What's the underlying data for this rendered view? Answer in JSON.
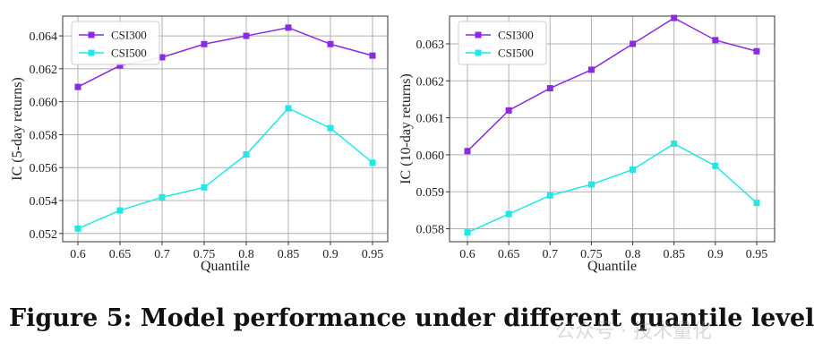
{
  "chart_data": [
    {
      "type": "line",
      "title": "",
      "xlabel": "Quantile",
      "ylabel": "IC  (5-day returns)",
      "categories": [
        "0.6",
        "0.65",
        "0.7",
        "0.75",
        "0.8",
        "0.85",
        "0.9",
        "0.95"
      ],
      "ylim": [
        0.0515,
        0.0652
      ],
      "yticks": [
        "0.052",
        "0.054",
        "0.056",
        "0.058",
        "0.060",
        "0.062",
        "0.064"
      ],
      "ytick_values": [
        0.052,
        0.054,
        0.056,
        0.058,
        0.06,
        0.062,
        0.064
      ],
      "grid": true,
      "legend_position": "top-left",
      "series": [
        {
          "name": "CSI300",
          "color": "#8a2be2",
          "marker": "square",
          "values": [
            0.0609,
            0.0622,
            0.0627,
            0.0635,
            0.064,
            0.0645,
            0.0635,
            0.0628
          ]
        },
        {
          "name": "CSI500",
          "color": "#1ee8e8",
          "marker": "square",
          "values": [
            0.0523,
            0.0534,
            0.0542,
            0.0548,
            0.0568,
            0.0596,
            0.0584,
            0.0563
          ]
        }
      ]
    },
    {
      "type": "line",
      "title": "",
      "xlabel": "Quantile",
      "ylabel": "IC  (10-day returns)",
      "categories": [
        "0.6",
        "0.65",
        "0.7",
        "0.75",
        "0.8",
        "0.85",
        "0.9",
        "0.95"
      ],
      "ylim": [
        0.05765,
        0.06375
      ],
      "yticks": [
        "0.058",
        "0.059",
        "0.060",
        "0.061",
        "0.062",
        "0.063"
      ],
      "ytick_values": [
        0.058,
        0.059,
        0.06,
        0.061,
        0.062,
        0.063
      ],
      "grid": true,
      "legend_position": "top-left",
      "series": [
        {
          "name": "CSI300",
          "color": "#8a2be2",
          "marker": "square",
          "values": [
            0.0601,
            0.0612,
            0.0618,
            0.0623,
            0.063,
            0.0637,
            0.0631,
            0.0628
          ]
        },
        {
          "name": "CSI500",
          "color": "#1ee8e8",
          "marker": "square",
          "values": [
            0.0579,
            0.0584,
            0.0589,
            0.0592,
            0.0596,
            0.0603,
            0.0597,
            0.0587
          ]
        }
      ]
    }
  ],
  "caption": "Figure 5: Model performance under different quantile level",
  "watermark": "公众号 · 技术量化"
}
